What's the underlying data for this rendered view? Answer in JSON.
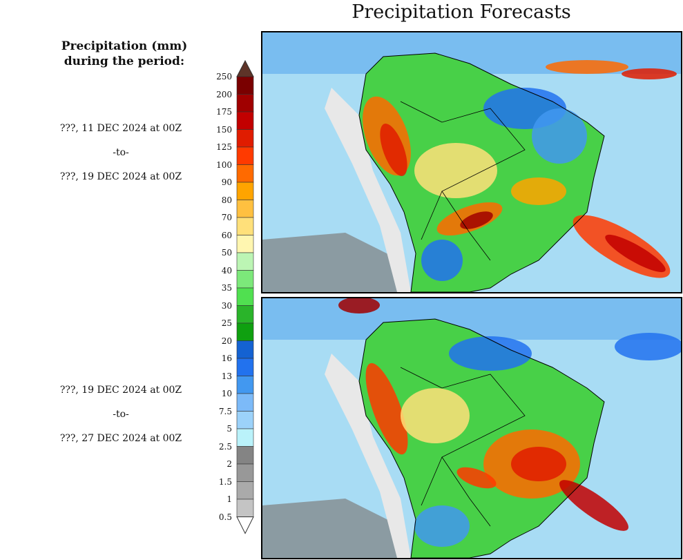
{
  "title": "Precipitation Forecasts",
  "legend": {
    "title_line1": "Precipitation (mm)",
    "title_line2": "during the period:",
    "labels": [
      "250",
      "200",
      "175",
      "150",
      "125",
      "100",
      "90",
      "80",
      "70",
      "60",
      "50",
      "40",
      "35",
      "30",
      "25",
      "20",
      "16",
      "13",
      "10",
      "7.5",
      "5",
      "2.5",
      "2",
      "1.5",
      "1",
      "0.5"
    ],
    "colors": [
      "#7a0000",
      "#a00000",
      "#c20000",
      "#e01c00",
      "#ff3a00",
      "#ff6a00",
      "#ffa400",
      "#ffc040",
      "#ffe07a",
      "#fff6b0",
      "#bcf5b4",
      "#7ce87a",
      "#50e050",
      "#2ab42a",
      "#0fa010",
      "#1462d2",
      "#2272ee",
      "#4298f0",
      "#7cbaf8",
      "#9cd2fa",
      "#baf2fa",
      "#848484",
      "#989898",
      "#aaaaaa",
      "#c4c4c4"
    ],
    "over_color": "#5e3428",
    "under_color": "#ffffff"
  },
  "periods": [
    {
      "start": "???, 11 DEC 2024 at 00Z",
      "to": "-to-",
      "end": "???, 19 DEC 2024 at 00Z"
    },
    {
      "start": "???, 19 DEC 2024 at 00Z",
      "to": "-to-",
      "end": "???, 27 DEC 2024 at 00Z"
    }
  ]
}
